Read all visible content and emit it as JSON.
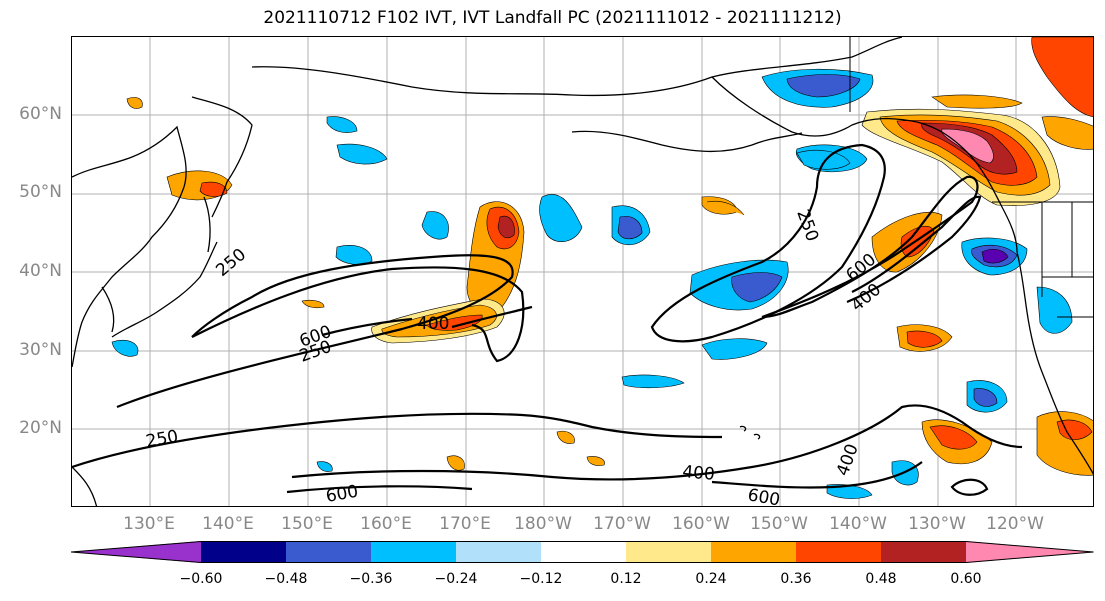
{
  "title": "2021110712 F102 IVT, IVT Landfall PC (2021111012 - 2021111212)",
  "y_axis": {
    "labels": [
      "60°N",
      "50°N",
      "40°N",
      "30°N",
      "20°N"
    ]
  },
  "x_axis": {
    "labels": [
      "130°E",
      "140°E",
      "150°E",
      "160°E",
      "170°E",
      "180°W",
      "170°W",
      "160°W",
      "150°W",
      "140°W",
      "130°W",
      "120°W"
    ]
  },
  "contour_labels": [
    "250",
    "250",
    "250",
    "250",
    "400",
    "400",
    "400",
    "400",
    "600",
    "600",
    "600",
    "600"
  ],
  "colorbar": {
    "tick_labels": [
      "−0.60",
      "−0.48",
      "−0.36",
      "−0.24",
      "−0.12",
      "0.12",
      "0.24",
      "0.36",
      "0.48",
      "0.60"
    ],
    "colors": [
      "#9932cc",
      "#00008b",
      "#3a5bcf",
      "#00bfff",
      "#b0e0fa",
      "#ffffff",
      "#ffe98a",
      "#ffa500",
      "#ff4500",
      "#b22222",
      "#ff88b0"
    ]
  },
  "shading_colors": {
    "neg_strong": "#3a5bcf",
    "neg_mid": "#00bfff",
    "neg_weak": "#b0e0fa",
    "pos_weak": "#ffe98a",
    "pos_mid": "#ffa500",
    "pos_high": "#ff4500",
    "pos_strong": "#b22222",
    "pos_extreme": "#ff88b0",
    "neg_extreme": "#5a00b0"
  }
}
